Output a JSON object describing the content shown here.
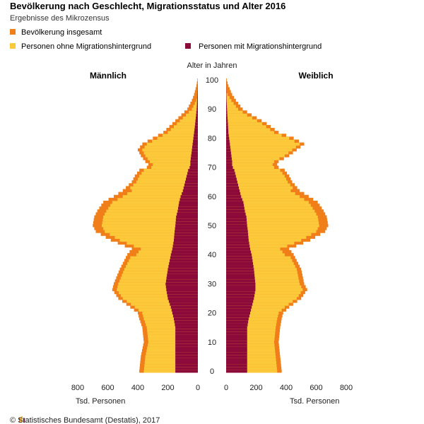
{
  "chart_data": {
    "type": "bar",
    "title": "Bevölkerung nach Geschlecht, Migrationsstatus und Alter 2016",
    "subtitle": "Ergebnisse des Mikrozensus",
    "center_axis_label": "Alter in Jahren",
    "left_label": "Männlich",
    "right_label": "Weiblich",
    "x_unit_label": "Tsd. Personen",
    "xlim": [
      0,
      800
    ],
    "x_ticks": [
      800,
      600,
      400,
      200,
      0
    ],
    "x_ticks_right": [
      0,
      200,
      400,
      600,
      800
    ],
    "ylim": [
      0,
      100
    ],
    "age_ticks": [
      100,
      90,
      80,
      70,
      60,
      50,
      40,
      30,
      20,
      10,
      0
    ],
    "legend": [
      {
        "name": "Bevölkerung insgesamt",
        "color": "#f07f1a"
      },
      {
        "name": "Personen ohne Migrationshintergrund",
        "color": "#fcc93a"
      },
      {
        "name": "Personen mit Migrationshintergrund",
        "color": "#8c0a3a"
      }
    ],
    "series_anchors_ages": [
      0,
      5,
      10,
      15,
      18,
      20,
      22,
      25,
      28,
      30,
      35,
      40,
      42,
      45,
      48,
      50,
      53,
      55,
      58,
      60,
      62,
      65,
      67,
      69,
      70,
      71,
      72,
      74,
      76,
      78,
      80,
      82,
      85,
      88,
      90,
      93,
      95,
      98,
      100
    ],
    "male": {
      "total": [
        390,
        380,
        360,
        370,
        390,
        400,
        450,
        530,
        570,
        560,
        520,
        470,
        440,
        580,
        680,
        700,
        690,
        670,
        630,
        560,
        500,
        440,
        420,
        390,
        340,
        330,
        350,
        380,
        400,
        370,
        300,
        230,
        170,
        110,
        70,
        40,
        25,
        10,
        3
      ],
      "with_migration": [
        150,
        150,
        150,
        150,
        160,
        170,
        180,
        200,
        210,
        215,
        200,
        180,
        170,
        160,
        155,
        150,
        145,
        135,
        125,
        115,
        100,
        85,
        75,
        65,
        55,
        50,
        50,
        45,
        40,
        35,
        30,
        25,
        18,
        12,
        8,
        5,
        3,
        1,
        0
      ]
    },
    "female": {
      "total": [
        370,
        360,
        350,
        360,
        370,
        380,
        420,
        500,
        540,
        520,
        500,
        450,
        420,
        560,
        660,
        680,
        670,
        650,
        610,
        550,
        490,
        440,
        420,
        390,
        350,
        340,
        350,
        420,
        470,
        520,
        450,
        350,
        270,
        170,
        110,
        65,
        40,
        15,
        4
      ],
      "with_migration": [
        140,
        140,
        140,
        140,
        150,
        160,
        170,
        185,
        195,
        195,
        185,
        170,
        160,
        150,
        145,
        140,
        135,
        125,
        115,
        100,
        90,
        75,
        65,
        55,
        45,
        40,
        40,
        35,
        30,
        25,
        20,
        15,
        12,
        8,
        6,
        3,
        2,
        1,
        0
      ]
    },
    "source": "© Statistisches Bundesamt (Destatis), 2017"
  }
}
